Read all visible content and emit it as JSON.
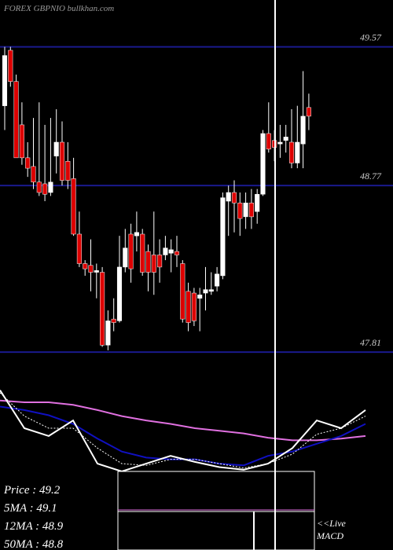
{
  "chart_data": [
    {
      "type": "candlestick",
      "title": "FOREX  GBPNIO bullkhan.com",
      "categories": [
        null,
        null,
        null,
        null,
        null,
        null,
        null,
        null,
        null,
        null,
        null,
        null,
        null,
        null,
        null,
        null,
        null,
        null,
        null,
        null,
        null,
        null,
        null,
        null,
        null,
        null,
        null,
        null,
        null,
        null,
        null,
        null,
        null,
        null,
        null,
        null,
        null,
        null,
        null,
        null,
        null,
        null,
        null,
        null,
        null,
        null,
        null,
        null,
        null,
        null,
        null,
        null,
        null,
        null
      ],
      "open": [
        49.23,
        49.55,
        49.37,
        49.12,
        48.93,
        48.88,
        48.79,
        48.78,
        48.73,
        48.94,
        49.02,
        48.91,
        48.81,
        48.49,
        48.32,
        48.31,
        48.27,
        48.27,
        47.85,
        48.0,
        47.99,
        48.3,
        48.49,
        48.48,
        48.49,
        48.39,
        48.37,
        48.37,
        48.37,
        48.38,
        48.39,
        48.32,
        48.16,
        48.15,
        48.12,
        48.15,
        48.16,
        48.19,
        48.25,
        48.68,
        48.73,
        48.67,
        48.59,
        48.67,
        48.62,
        48.72,
        49.07,
        49.03,
        49.01,
        49.03,
        49.02,
        48.9,
        49.01,
        49.22
      ],
      "high": [
        49.57,
        49.57,
        49.41,
        49.25,
        49.02,
        49.16,
        49.25,
        49.12,
        49.16,
        49.21,
        49.14,
        49.02,
        48.93,
        48.62,
        48.34,
        48.46,
        48.32,
        48.3,
        48.05,
        48.12,
        48.48,
        48.52,
        48.55,
        48.62,
        48.52,
        48.43,
        48.62,
        48.46,
        48.48,
        48.46,
        48.48,
        48.34,
        48.21,
        48.18,
        48.18,
        48.3,
        48.27,
        48.3,
        48.73,
        48.77,
        48.8,
        48.73,
        48.73,
        48.75,
        48.75,
        49.09,
        49.25,
        49.09,
        49.12,
        49.12,
        49.21,
        49.23,
        49.43,
        49.3
      ],
      "low": [
        49.09,
        49.34,
        48.93,
        48.89,
        48.82,
        48.75,
        48.71,
        48.68,
        48.71,
        48.84,
        48.77,
        48.75,
        48.48,
        48.3,
        48.25,
        48.16,
        48.12,
        47.84,
        47.82,
        47.93,
        47.98,
        48.27,
        48.21,
        48.39,
        48.25,
        48.16,
        48.14,
        48.21,
        48.34,
        48.27,
        48.3,
        47.98,
        47.93,
        47.96,
        47.93,
        48.05,
        48.14,
        48.16,
        48.23,
        48.48,
        48.5,
        48.48,
        48.52,
        48.52,
        48.55,
        48.71,
        48.96,
        48.91,
        48.93,
        48.96,
        48.87,
        48.87,
        48.87,
        49.09
      ],
      "close": [
        49.52,
        49.37,
        48.93,
        48.93,
        48.87,
        48.79,
        48.73,
        48.72,
        48.79,
        49.02,
        48.8,
        48.8,
        48.49,
        48.32,
        48.29,
        48.27,
        48.28,
        47.85,
        47.99,
        47.98,
        48.3,
        48.41,
        48.29,
        48.5,
        48.27,
        48.27,
        48.27,
        48.3,
        48.41,
        48.4,
        48.37,
        48.0,
        47.98,
        47.99,
        48.14,
        48.17,
        48.17,
        48.26,
        48.7,
        48.73,
        48.67,
        48.58,
        48.67,
        48.59,
        48.72,
        49.07,
        48.98,
        48.99,
        49.02,
        49.05,
        48.9,
        49.02,
        49.17,
        49.17
      ],
      "up_color": "#ffffff",
      "down_color": "#dd0000",
      "ylim": [
        47.62,
        49.84
      ],
      "yticks": [
        49.57,
        48.77,
        47.81
      ],
      "grid": true,
      "grid_color": "#1a1a8c"
    },
    {
      "type": "line",
      "categories": [
        null,
        null,
        null,
        null,
        null,
        null,
        null,
        null,
        null,
        null,
        null,
        null,
        null,
        null,
        null,
        null
      ],
      "ylim": [
        0,
        100
      ],
      "series": [
        {
          "color": "#e070e0",
          "values": [
            82,
            80,
            80,
            77,
            71,
            64,
            59,
            55,
            50,
            47,
            44,
            39,
            36,
            36,
            38,
            41
          ]
        },
        {
          "color": "#1010c0",
          "values": [
            75,
            71,
            65,
            55,
            38,
            23,
            16,
            14,
            14,
            9,
            7,
            18,
            23,
            32,
            41,
            55
          ]
        },
        {
          "color": "#ffffff",
          "dash": true,
          "values": [
            91,
            64,
            50,
            50,
            27,
            9,
            7,
            14,
            14,
            9,
            4,
            9,
            20,
            43,
            50,
            64
          ]
        },
        {
          "color": "#ffffff",
          "values": [
            94,
            50,
            41,
            59,
            9,
            0,
            9,
            18,
            11,
            5,
            2,
            9,
            27,
            59,
            50,
            71
          ]
        }
      ]
    }
  ],
  "info_lines": [
    "Price   : 49.2",
    "5MA   : 49.1",
    "12MA : 48.9",
    "50MA : 48.8"
  ],
  "live_label": "<<Live",
  "macd_label": "MACD"
}
